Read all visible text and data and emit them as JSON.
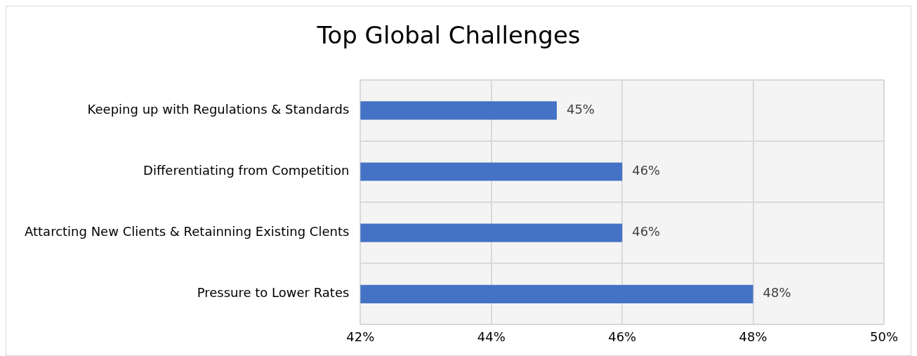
{
  "chart_data": {
    "type": "bar",
    "title": "Top Global Challenges",
    "orientation": "horizontal",
    "categories": [
      "Keeping up with Regulations & Standards",
      "Differentiating from Competition",
      "Attarcting New Clients & Retainning Existing Clents",
      "Pressure to Lower Rates"
    ],
    "values": [
      45,
      46,
      46,
      48
    ],
    "color": "#4472c4",
    "value_labels": [
      "45%",
      "46%",
      "46%",
      "48%"
    ],
    "xlim": [
      42,
      50
    ],
    "xticks": [
      {
        "value": 42,
        "label": "42%"
      },
      {
        "value": 44,
        "label": "44%"
      },
      {
        "value": 46,
        "label": "46%"
      },
      {
        "value": 48,
        "label": "48%"
      },
      {
        "value": 50,
        "label": "50%"
      }
    ],
    "grid": true,
    "legend": false
  }
}
